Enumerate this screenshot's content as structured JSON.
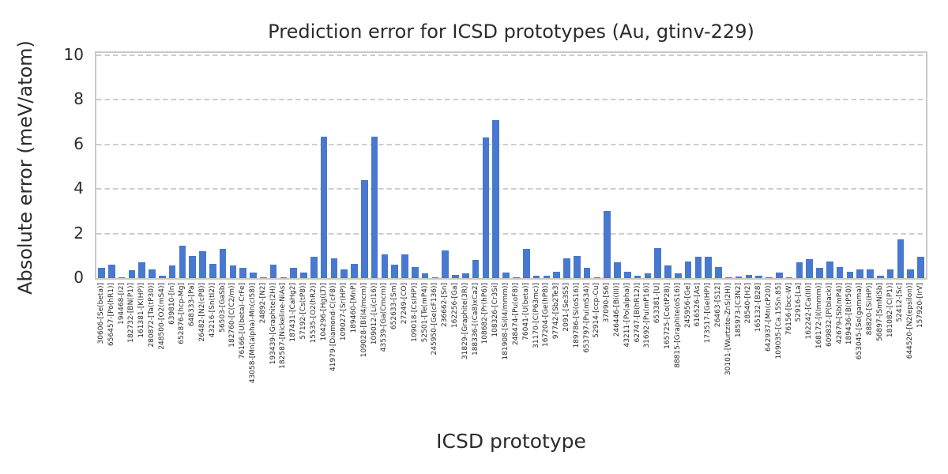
{
  "chart_data": {
    "type": "bar",
    "title": "Prediction error for ICSD prototypes (Au, gtinv-229)",
    "xlabel": "ICSD prototype",
    "ylabel": "Absolute error (meV/atom)",
    "ylim": [
      0,
      10.1
    ],
    "yticks": [
      0,
      2,
      4,
      6,
      8,
      10
    ],
    "grid": "dashed-horizontal",
    "legend": "none",
    "bar_color": "#4878D0",
    "grid_color": "#cdcdcd",
    "spine_color": "#c9c9c9",
    "text_color": "#2b2b2b",
    "categories": [
      "30606-[Se(beta)]",
      "656457-[Po(hR1)]",
      "194468-[I2]",
      "182732-[BN(P1)]",
      "161381-[K(HP)]",
      "280872-[Ta(tP30)]",
      "248500-[O2(mS4)]",
      "639810-[In]",
      "652876-[hcp-Mg]",
      "648333-[Pa]",
      "26482-[N2(cP8)]",
      "43216-[Sn(tI2)]",
      "56503-[GaSb]",
      "182760-[C(C2/m)]",
      "76166-[U(beta)-CrFe]",
      "43058-[Mn(alpha)-Mn(cI58)]",
      "24892-[N2]",
      "193439-[Graphite(2H)]",
      "182587-[Nickeline-NiAs]",
      "187431-[CaHg2]",
      "57192-[Cs(tP8)]",
      "15535-[O2(hR2)]",
      "104296-[Hg(LT)]",
      "41979-[Diamond-C(cF8)]",
      "109027-[Sr(HP)]",
      "189460-[MnP]",
      "109028-[Bi(I4/mcm)]",
      "109012-[Li(cI16)]",
      "43539-[Ga(Cmcm)]",
      "652633-[Sm]",
      "27249-[CO]",
      "109018-[Cs(HP)]",
      "52501-[Te(mP4)]",
      "245950-[Ge(cF136)]",
      "236662-[Sn]",
      "162256-[Ga]",
      "31829-[Graphite(3R)]",
      "188336-[(Ca8)xCa2]",
      "108682-[Pr(hP6)]",
      "108326-[Cr3Si]",
      "181908-[Si(I4/mmm)]",
      "248474-[Pu(oF8)]",
      "76041-[U(beta)]",
      "31170-[C(P63mc)]",
      "167204-[Ge(hP8)]",
      "97742-[Sb2Te3]",
      "2091-[Se3S5]",
      "189786-[Si(oS16)]",
      "653797-[Pu(mS34)]",
      "52914-[ccp-Cu]",
      "37090-[S6]",
      "246446-[Bi(III)]",
      "43211-[Po(alpha)]",
      "62747-[B(hR12)]",
      "31692-[Pu(mP16)]",
      "653381-[U]",
      "165725-[Co(tP28)]",
      "88815-[Graphite(oS16)]",
      "245956-[Ge]",
      "616526-[As]",
      "173517-[Ge(HP)]",
      "26463-[S12]",
      "30101-[Wurtzite-ZnS(2H)]",
      "185973-[C3N2]",
      "28540-[H2]",
      "165132-[B28]",
      "642937-[Mn(cP20)]",
      "109035-[Ca.15Sn.85]",
      "76156-[bcc-W]",
      "52916-[La]",
      "162242-[Ca(III)]",
      "168172-[I(Immm)]",
      "609832-[P(black)]",
      "42679-[Sb(mP4)]",
      "189436-[B(tP50)]",
      "653045-[Se(gamma)]",
      "88820-[Si(HP)]",
      "56897-[SmNiSb]",
      "181082-[C(P1)]",
      "52412-[Sc]",
      "644520-[N2(epsilon)]",
      "157920-[IrV]"
    ],
    "values": [
      0.45,
      0.6,
      0.05,
      0.35,
      0.7,
      0.4,
      0.1,
      0.55,
      1.45,
      1.0,
      1.2,
      0.65,
      1.3,
      0.55,
      0.45,
      0.25,
      0.05,
      0.6,
      0.05,
      0.45,
      0.25,
      0.95,
      6.35,
      0.9,
      0.4,
      0.65,
      4.4,
      6.35,
      1.05,
      0.6,
      1.05,
      0.5,
      0.2,
      0.05,
      1.25,
      0.15,
      0.2,
      0.8,
      6.3,
      7.1,
      0.25,
      0.05,
      1.3,
      0.1,
      0.1,
      0.3,
      0.9,
      1.0,
      0.45,
      0.05,
      3.0,
      0.7,
      0.3,
      0.1,
      0.2,
      1.35,
      0.55,
      0.2,
      0.75,
      0.95,
      0.95,
      0.5,
      0.03,
      0.07,
      0.15,
      0.12,
      0.03,
      0.25,
      0.03,
      0.7,
      0.85,
      0.45,
      0.75,
      0.5,
      0.3,
      0.4,
      0.4,
      0.1,
      0.4,
      1.75,
      0.4,
      0.95
    ]
  }
}
